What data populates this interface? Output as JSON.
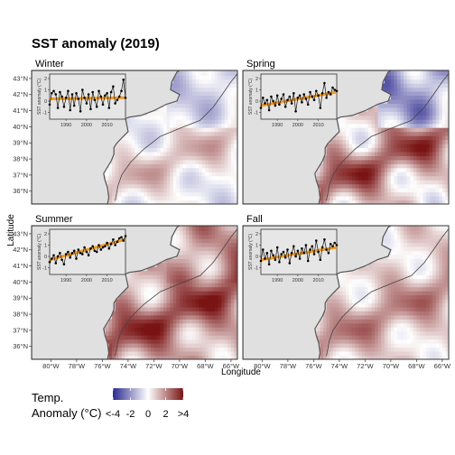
{
  "chart_data": {
    "type": "heatmap",
    "title": "SST anomaly (2019)",
    "xlabel": "Longitude",
    "ylabel": "Latitude",
    "x_ticks": [
      "80°W",
      "78°W",
      "76°W",
      "74°W",
      "72°W",
      "70°W",
      "68°W",
      "66°W"
    ],
    "y_ticks": [
      "43°N",
      "42°N",
      "41°N",
      "40°N",
      "39°N",
      "38°N",
      "37°N",
      "36°N"
    ],
    "x_range": [
      -81.5,
      -65.5
    ],
    "y_range": [
      35.2,
      43.5
    ],
    "legend": {
      "title_line1": "Temp.",
      "title_line2": "Anomaly (°C)",
      "tick_labels": [
        "<-4",
        "-2",
        "0",
        "2",
        ">4"
      ],
      "range": [
        -4,
        4
      ],
      "colors": {
        "low": "#2d2b8f",
        "mid": "#ffffff",
        "high": "#7a1414"
      }
    },
    "inset": {
      "x_ticks": [
        "1990",
        "2000",
        "2010"
      ],
      "y_ticks": [
        "2",
        "1",
        "0",
        "-1"
      ],
      "x_range": [
        1982,
        2019
      ],
      "y_range": [
        -1.6,
        2.4
      ],
      "ylabel": "SST anomaly (°C)",
      "trend_color": "#f0920f"
    },
    "panels": [
      {
        "name": "Winter",
        "anomaly_scale": 1.0,
        "series": [
          -0.3,
          0.7,
          0.9,
          0.6,
          -0.6,
          0.8,
          0.4,
          -0.5,
          0.3,
          0.9,
          -0.8,
          0.6,
          -0.4,
          0.7,
          0.2,
          -0.9,
          1.0,
          0.3,
          -0.2,
          0.6,
          -0.7,
          0.8,
          0.1,
          -0.5,
          0.9,
          0.4,
          -0.3,
          0.5,
          0.7,
          -0.6,
          0.8,
          1.3,
          -0.2,
          0.1,
          0.4,
          0.9,
          1.9,
          0.3
        ],
        "trend": [
          0.2,
          0.3
        ]
      },
      {
        "name": "Spring",
        "anomaly_scale": 1.6,
        "series": [
          -0.6,
          0.3,
          -0.2,
          0.1,
          -0.8,
          0.4,
          0.0,
          -0.4,
          0.5,
          -0.3,
          0.2,
          0.6,
          -0.5,
          0.1,
          0.4,
          -0.2,
          0.7,
          -0.9,
          0.3,
          0.5,
          -0.1,
          0.6,
          0.2,
          -0.3,
          0.8,
          0.4,
          0.1,
          0.9,
          0.5,
          -0.6,
          0.7,
          1.6,
          0.3,
          0.8,
          0.6,
          1.2,
          1.0,
          0.9
        ],
        "trend": [
          -0.4,
          0.8
        ]
      },
      {
        "name": "Summer",
        "anomaly_scale": 1.4,
        "series": [
          -0.5,
          -0.2,
          0.1,
          -0.6,
          0.0,
          0.3,
          -0.3,
          -0.7,
          0.2,
          0.4,
          -0.1,
          0.3,
          0.5,
          -0.2,
          0.6,
          0.3,
          0.2,
          0.8,
          0.4,
          0.1,
          0.7,
          0.9,
          0.5,
          0.4,
          1.0,
          0.6,
          0.8,
          0.9,
          1.2,
          0.7,
          1.1,
          1.5,
          1.0,
          1.3,
          1.6,
          1.7,
          1.4,
          1.8
        ],
        "trend": [
          -0.3,
          1.5
        ]
      },
      {
        "name": "Fall",
        "anomaly_scale": 1.1,
        "series": [
          -0.4,
          0.6,
          -0.2,
          0.3,
          -0.7,
          0.5,
          0.1,
          -0.3,
          0.8,
          -0.5,
          0.2,
          0.4,
          -0.1,
          0.6,
          -0.6,
          0.3,
          0.9,
          0.0,
          0.5,
          -0.2,
          0.7,
          0.3,
          1.0,
          -0.4,
          0.6,
          0.9,
          0.2,
          1.4,
          0.4,
          -0.3,
          0.8,
          1.5,
          0.6,
          0.3,
          1.1,
          0.9,
          1.2,
          1.0
        ],
        "trend": [
          -0.3,
          0.8
        ]
      }
    ]
  }
}
